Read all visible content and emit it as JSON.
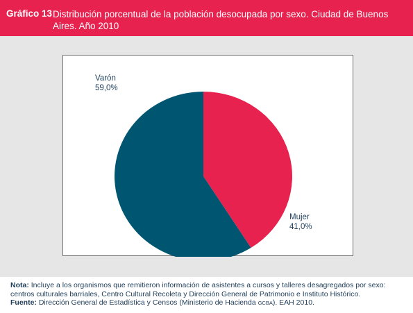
{
  "header": {
    "label": "Gráfico 13",
    "title": "Distribución porcentual de la población desocupada por sexo. Ciudad de Buenos Aires. Año 2010"
  },
  "chart_data": {
    "type": "pie",
    "title": "Distribución porcentual de la población desocupada por sexo. Ciudad de Buenos Aires. Año 2010",
    "categories": [
      "Mujer",
      "Varón"
    ],
    "values": [
      41.0,
      59.0
    ],
    "value_labels": [
      "41,0%",
      "59,0%"
    ],
    "colors": [
      "#e8224f",
      "#005670"
    ],
    "start_angle_deg": 0,
    "direction": "clockwise",
    "legend": "none"
  },
  "footer": {
    "note_label": "Nota:",
    "note_text": "Incluye a los organismos que remitieron información de asistentes a cursos y talleres desagregados por sexo: centros culturales barriales, Centro Cultural Recoleta y Dirección General de Patrimonio e Instituto Histórico.",
    "source_label": "Fuente:",
    "source_text": "Dirección General de Estadística y Censos (Ministerio de Hacienda",
    "source_abbr": "GCBA",
    "source_end": "). EAH 2010."
  }
}
